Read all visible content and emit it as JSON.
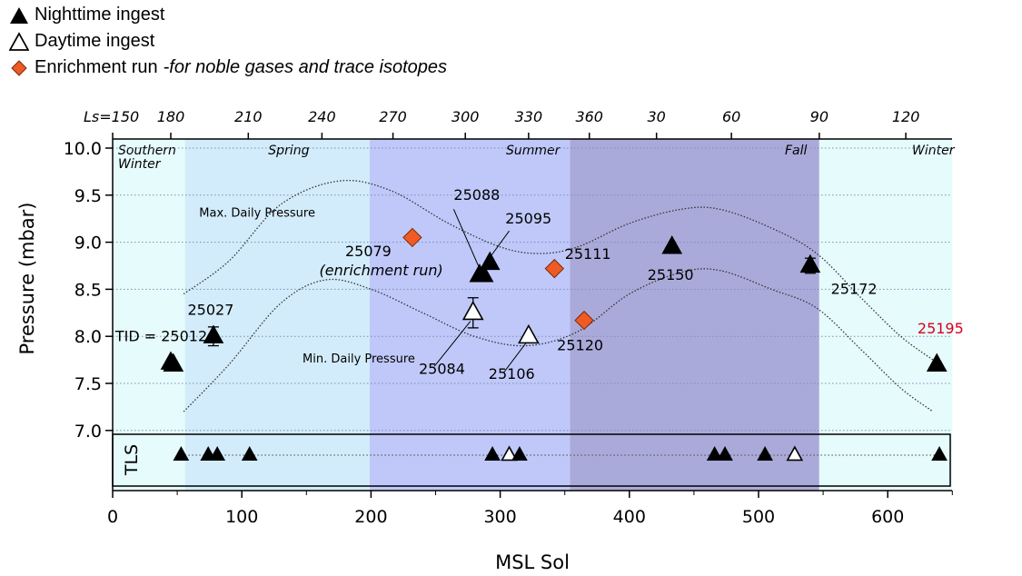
{
  "legend": [
    {
      "marker": "filled-triangle",
      "label": "Nighttime ingest",
      "note": ""
    },
    {
      "marker": "open-triangle",
      "label": "Daytime ingest",
      "note": ""
    },
    {
      "marker": "orange-diamond",
      "label": "Enrichment run",
      "note": "-for noble gases and trace isotopes"
    }
  ],
  "colors": {
    "southern_winter_band": "#e6fbfb",
    "spring_band": "#d3ecfb",
    "summer_band": "#bfc8f9",
    "late_summer_band": "#aaaada",
    "winter_band": "#e6fbfb",
    "enrichment": "#f05a24",
    "highlight_label": "#d8001c"
  },
  "chart_data": {
    "type": "scatter",
    "xlabel": "MSL Sol",
    "ylabel": "Pressure (mbar)",
    "xlim": [
      0,
      650
    ],
    "ylim": [
      6.45,
      10.05
    ],
    "xticks": [
      0,
      100,
      200,
      300,
      400,
      500,
      600
    ],
    "yticks": [
      "7.0",
      "7.5",
      "8.0",
      "8.5",
      "9.0",
      "9.5",
      "10.0"
    ],
    "top_axis": {
      "ticks": [
        {
          "sol": 0,
          "label": "Ls=150"
        },
        {
          "sol": 45,
          "label": "180"
        },
        {
          "sol": 105,
          "label": "210"
        },
        {
          "sol": 162,
          "label": "240"
        },
        {
          "sol": 217,
          "label": "270"
        },
        {
          "sol": 273,
          "label": "300"
        },
        {
          "sol": 322,
          "label": "330"
        },
        {
          "sol": 369,
          "label": "360"
        },
        {
          "sol": 421,
          "label": "30"
        },
        {
          "sol": 479,
          "label": "60"
        },
        {
          "sol": 547,
          "label": "90"
        },
        {
          "sol": 614,
          "label": "120"
        }
      ]
    },
    "seasons": [
      {
        "label": "Southern\nWinter",
        "start": 0,
        "end": 56,
        "color_key": "southern_winter_band"
      },
      {
        "label": "Spring",
        "start": 56,
        "end": 199,
        "color_key": "spring_band"
      },
      {
        "label": "Summer",
        "start": 199,
        "end": 354,
        "color_key": "summer_band"
      },
      {
        "label": "Fall",
        "start": 354,
        "end": 547,
        "color_key": "late_summer_band"
      },
      {
        "label": "Winter",
        "start": 547,
        "end": 650,
        "color_key": "winter_band"
      }
    ],
    "curves": [
      {
        "label": "Max. Daily Pressure",
        "points": [
          [
            55,
            8.45
          ],
          [
            90,
            8.8
          ],
          [
            130,
            9.4
          ],
          [
            175,
            9.65
          ],
          [
            215,
            9.55
          ],
          [
            260,
            9.2
          ],
          [
            300,
            8.95
          ],
          [
            330,
            8.88
          ],
          [
            360,
            8.95
          ],
          [
            400,
            9.2
          ],
          [
            440,
            9.35
          ],
          [
            470,
            9.35
          ],
          [
            510,
            9.15
          ],
          [
            545,
            8.88
          ],
          [
            580,
            8.4
          ],
          [
            610,
            8.0
          ],
          [
            635,
            7.75
          ]
        ]
      },
      {
        "label": "Min. Daily Pressure",
        "points": [
          [
            55,
            7.2
          ],
          [
            90,
            7.7
          ],
          [
            130,
            8.35
          ],
          [
            165,
            8.6
          ],
          [
            200,
            8.5
          ],
          [
            240,
            8.25
          ],
          [
            280,
            8.0
          ],
          [
            320,
            7.9
          ],
          [
            360,
            8.05
          ],
          [
            400,
            8.45
          ],
          [
            440,
            8.68
          ],
          [
            470,
            8.7
          ],
          [
            510,
            8.5
          ],
          [
            545,
            8.3
          ],
          [
            580,
            7.85
          ],
          [
            610,
            7.45
          ],
          [
            635,
            7.2
          ]
        ]
      }
    ],
    "points": [
      {
        "sol": 45,
        "p": 7.72,
        "kind": "night"
      },
      {
        "sol": 47,
        "p": 7.7,
        "kind": "night"
      },
      {
        "sol": 78,
        "p": 8.0,
        "kind": "night",
        "err": 0.1
      },
      {
        "sol": 284,
        "p": 8.65,
        "kind": "night"
      },
      {
        "sol": 287,
        "p": 8.65,
        "kind": "night"
      },
      {
        "sol": 292,
        "p": 8.78,
        "kind": "night"
      },
      {
        "sol": 433,
        "p": 8.95,
        "kind": "night"
      },
      {
        "sol": 540,
        "p": 8.75,
        "kind": "night",
        "err": 0.08
      },
      {
        "sol": 638,
        "p": 7.7,
        "kind": "night"
      },
      {
        "sol": 279,
        "p": 8.25,
        "kind": "day",
        "err": 0.16
      },
      {
        "sol": 322,
        "p": 8.0,
        "kind": "day"
      },
      {
        "sol": 232,
        "p": 9.05,
        "kind": "enrichment"
      },
      {
        "sol": 342,
        "p": 8.72,
        "kind": "enrichment"
      },
      {
        "sol": 365,
        "p": 8.17,
        "kind": "enrichment"
      }
    ],
    "annotations": [
      {
        "text": "TID = 25012",
        "sol": 2,
        "p": 7.95
      },
      {
        "text": "25027",
        "sol": 58,
        "p": 8.23
      },
      {
        "text": "25079",
        "sol": 180,
        "p": 8.85
      },
      {
        "text": "(enrichment run)",
        "sol": 160,
        "p": 8.65,
        "italic": true
      },
      {
        "text": "25088",
        "sol": 264,
        "p": 9.45
      },
      {
        "text": "25095",
        "sol": 304,
        "p": 9.2
      },
      {
        "text": "25111",
        "sol": 350,
        "p": 8.82
      },
      {
        "text": "25084",
        "sol": 237,
        "p": 7.6
      },
      {
        "text": "25106",
        "sol": 291,
        "p": 7.55
      },
      {
        "text": "25120",
        "sol": 344,
        "p": 7.85
      },
      {
        "text": "25150",
        "sol": 414,
        "p": 8.6
      },
      {
        "text": "25172",
        "sol": 556,
        "p": 8.45
      },
      {
        "text": "25195",
        "sol": 623,
        "p": 8.03,
        "highlight": true
      }
    ],
    "curve_labels": [
      {
        "text": "Max. Daily Pressure",
        "sol": 67,
        "p": 9.27
      },
      {
        "text": "Min. Daily Pressure",
        "sol": 147,
        "p": 7.72
      }
    ],
    "tls": {
      "label": "TLS",
      "points": [
        {
          "sol": 53,
          "kind": "night"
        },
        {
          "sol": 74,
          "kind": "night"
        },
        {
          "sol": 81,
          "kind": "night"
        },
        {
          "sol": 106,
          "kind": "night"
        },
        {
          "sol": 294,
          "kind": "night"
        },
        {
          "sol": 307,
          "kind": "day"
        },
        {
          "sol": 315,
          "kind": "night"
        },
        {
          "sol": 466,
          "kind": "night"
        },
        {
          "sol": 474,
          "kind": "night"
        },
        {
          "sol": 505,
          "kind": "night"
        },
        {
          "sol": 528,
          "kind": "day"
        },
        {
          "sol": 640,
          "kind": "night"
        }
      ]
    }
  }
}
